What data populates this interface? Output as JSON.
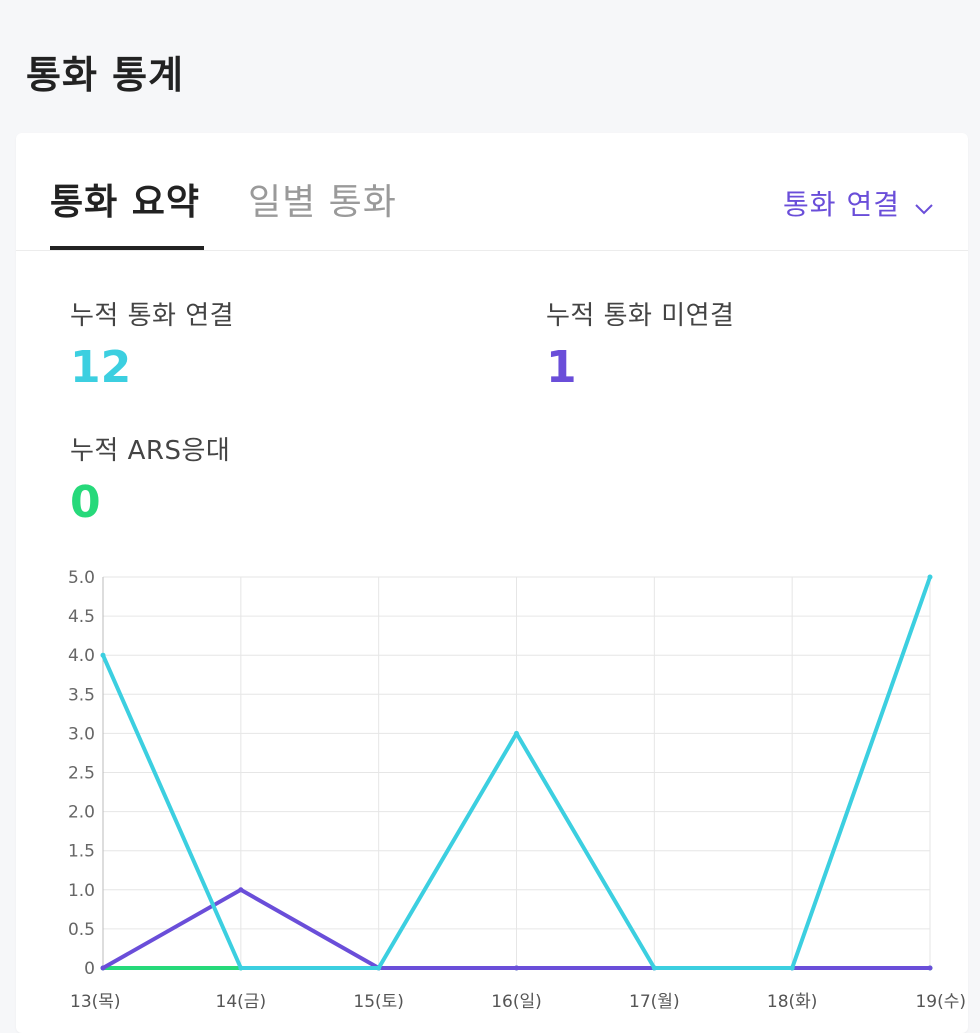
{
  "page": {
    "title": "통화 통계"
  },
  "tabs": [
    {
      "label": "통화 요약",
      "active": true
    },
    {
      "label": "일별 통화",
      "active": false
    }
  ],
  "filter": {
    "selected": "통화 연결",
    "icon": "chevron-down-icon"
  },
  "stats": [
    {
      "label": "누적 통화 연결",
      "value": "12",
      "color": "#3ccfe0"
    },
    {
      "label": "누적 통화 미연결",
      "value": "1",
      "color": "#6a4ed9"
    },
    {
      "label": "누적 ARS응대",
      "value": "0",
      "color": "#26d97a"
    }
  ],
  "colors": {
    "accent": "#6a4ed9",
    "connected": "#3ccfe0",
    "missed": "#6a4ed9",
    "ars": "#26d97a"
  },
  "chart_data": {
    "type": "line",
    "categories": [
      "13(목)",
      "14(금)",
      "15(토)",
      "16(일)",
      "17(월)",
      "18(화)",
      "19(수)"
    ],
    "series": [
      {
        "values": [
          4,
          0,
          0,
          3,
          0,
          0,
          5
        ],
        "color": "#3ccfe0"
      },
      {
        "values": [
          0,
          1,
          0,
          0,
          0,
          0,
          0
        ],
        "color": "#6a4ed9"
      },
      {
        "values": [
          0,
          0,
          0,
          0,
          0,
          0,
          0
        ],
        "color": "#26d97a"
      }
    ],
    "y_ticks": [
      "5.0",
      "4.5",
      "4.0",
      "3.5",
      "3.0",
      "2.5",
      "2.0",
      "1.5",
      "1.0",
      "0.5",
      "0"
    ],
    "ylim": [
      0,
      5
    ],
    "grid": true,
    "legend": "none"
  }
}
